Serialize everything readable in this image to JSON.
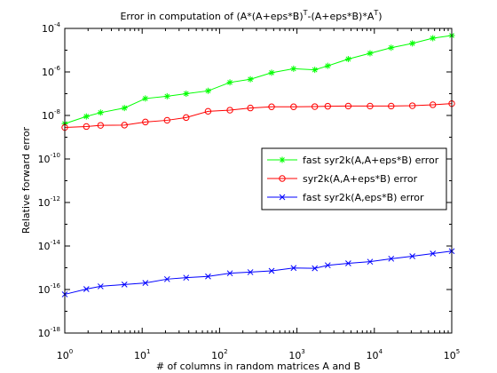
{
  "chart_data": {
    "type": "line",
    "title": "Error in computation of (A*(A+eps*B)^T-(A+eps*B)*A^T)",
    "title_parts": {
      "pre": "Error in computation of (A*(A+eps*B)",
      "sup1": "T",
      "mid": "-(A+eps*B)*A",
      "sup2": "T",
      "post": ")"
    },
    "xlabel": "# of columns in random matrices A and B",
    "ylabel": "Relative forward error",
    "xscale": "log",
    "yscale": "log",
    "xlim": [
      1,
      100000
    ],
    "ylim": [
      1e-18,
      0.0001
    ],
    "x_ticks": [
      {
        "value": 1,
        "base": "10",
        "exp": "0"
      },
      {
        "value": 10,
        "base": "10",
        "exp": "1"
      },
      {
        "value": 100,
        "base": "10",
        "exp": "2"
      },
      {
        "value": 1000,
        "base": "10",
        "exp": "3"
      },
      {
        "value": 10000,
        "base": "10",
        "exp": "4"
      },
      {
        "value": 100000,
        "base": "10",
        "exp": "5"
      }
    ],
    "y_ticks": [
      {
        "value": 1e-18,
        "base": "10",
        "exp": "-18"
      },
      {
        "value": 1e-16,
        "base": "10",
        "exp": "-16"
      },
      {
        "value": 1e-14,
        "base": "10",
        "exp": "-14"
      },
      {
        "value": 1e-12,
        "base": "10",
        "exp": "-12"
      },
      {
        "value": 1e-10,
        "base": "10",
        "exp": "-10"
      },
      {
        "value": 1e-08,
        "base": "10",
        "exp": "-8"
      },
      {
        "value": 1e-06,
        "base": "10",
        "exp": "-6"
      },
      {
        "value": 0.0001,
        "base": "10",
        "exp": "-4"
      }
    ],
    "legend_position": "middle-right",
    "x": [
      1,
      1.9,
      2.9,
      5.9,
      11,
      21,
      37,
      71,
      136,
      250,
      470,
      905,
      1700,
      2500,
      4600,
      8800,
      16500,
      31000,
      57000,
      100000
    ],
    "series": [
      {
        "name": "fast syr2k(A,A+eps*B) error",
        "color": "#00ff00",
        "marker": "star",
        "values": [
          4.2e-09,
          9e-09,
          1.35e-08,
          2.2e-08,
          6e-08,
          7.6e-08,
          1e-07,
          1.35e-07,
          3.3e-07,
          4.6e-07,
          9.2e-07,
          1.4e-06,
          1.25e-06,
          1.9e-06,
          3.9e-06,
          7.2e-06,
          1.3e-05,
          2.05e-05,
          3.55e-05,
          4.7e-05
        ]
      },
      {
        "name": "syr2k(A,A+eps*B) error",
        "color": "#ff0000",
        "marker": "circle",
        "values": [
          2.8e-09,
          3.1e-09,
          3.5e-09,
          3.6e-09,
          5e-09,
          6e-09,
          8e-09,
          1.55e-08,
          1.75e-08,
          2.2e-08,
          2.5e-08,
          2.5e-08,
          2.55e-08,
          2.65e-08,
          2.7e-08,
          2.7e-08,
          2.7e-08,
          2.8e-08,
          3.1e-08,
          3.5e-08
        ]
      },
      {
        "name": "fast syr2k(A,eps*B) error",
        "color": "#0000ff",
        "marker": "x",
        "values": [
          6e-17,
          1.05e-16,
          1.4e-16,
          1.7e-16,
          2e-16,
          3e-16,
          3.5e-16,
          4e-16,
          5.6e-16,
          6.3e-16,
          7.2e-16,
          9.8e-16,
          9.4e-16,
          1.3e-15,
          1.6e-15,
          1.9e-15,
          2.6e-15,
          3.4e-15,
          4.5e-15,
          5.8e-15
        ]
      }
    ]
  }
}
